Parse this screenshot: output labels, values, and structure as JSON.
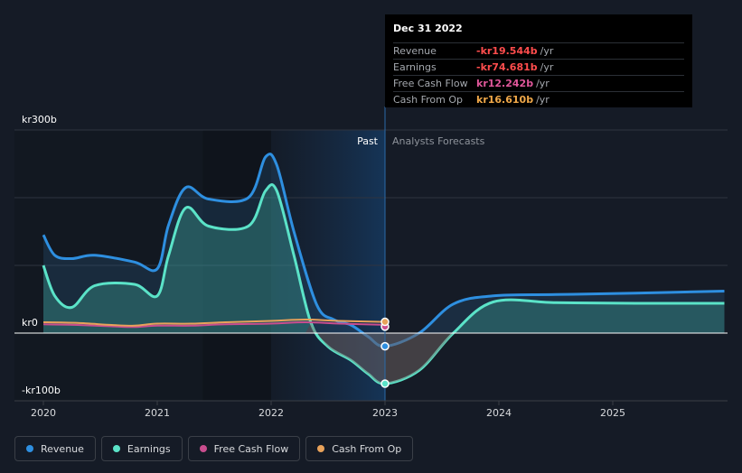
{
  "chart_data": {
    "type": "area",
    "x_ticks": [
      "2020",
      "2021",
      "2022",
      "2023",
      "2024",
      "2025"
    ],
    "y_ticks": [
      {
        "value": 300,
        "label": "kr300b"
      },
      {
        "value": 0,
        "label": "kr0"
      },
      {
        "value": -100,
        "label": "-kr100b"
      }
    ],
    "ylim": [
      -100,
      300
    ],
    "past_label": "Past",
    "forecast_label": "Analysts Forecasts",
    "series": [
      {
        "name": "Revenue",
        "color": "#2e8fe0",
        "fill": true,
        "points": [
          [
            2020.0,
            145
          ],
          [
            2020.1,
            115
          ],
          [
            2020.25,
            110
          ],
          [
            2020.45,
            115
          ],
          [
            2020.8,
            105
          ],
          [
            2021.0,
            95
          ],
          [
            2021.1,
            160
          ],
          [
            2021.25,
            215
          ],
          [
            2021.45,
            198
          ],
          [
            2021.8,
            200
          ],
          [
            2021.95,
            260
          ],
          [
            2022.05,
            248
          ],
          [
            2022.2,
            150
          ],
          [
            2022.4,
            42
          ],
          [
            2022.55,
            20
          ],
          [
            2022.7,
            12
          ],
          [
            2022.85,
            -5
          ],
          [
            2023.0,
            -19.5
          ],
          [
            2023.3,
            0
          ],
          [
            2023.6,
            43
          ],
          [
            2023.95,
            55
          ],
          [
            2024.5,
            57
          ],
          [
            2025.2,
            59
          ],
          [
            2025.98,
            62
          ]
        ]
      },
      {
        "name": "Earnings",
        "color": "#5be3c8",
        "fill": true,
        "points": [
          [
            2020.0,
            100
          ],
          [
            2020.1,
            55
          ],
          [
            2020.25,
            38
          ],
          [
            2020.45,
            70
          ],
          [
            2020.8,
            72
          ],
          [
            2021.0,
            55
          ],
          [
            2021.1,
            115
          ],
          [
            2021.25,
            185
          ],
          [
            2021.45,
            158
          ],
          [
            2021.8,
            158
          ],
          [
            2021.95,
            210
          ],
          [
            2022.05,
            210
          ],
          [
            2022.2,
            115
          ],
          [
            2022.35,
            15
          ],
          [
            2022.5,
            -20
          ],
          [
            2022.7,
            -40
          ],
          [
            2022.85,
            -60
          ],
          [
            2023.0,
            -74.7
          ],
          [
            2023.3,
            -55
          ],
          [
            2023.6,
            0
          ],
          [
            2023.95,
            46
          ],
          [
            2024.5,
            45
          ],
          [
            2025.2,
            44
          ],
          [
            2025.98,
            44
          ]
        ]
      },
      {
        "name": "Free Cash Flow",
        "color": "#c94d8e",
        "fill": false,
        "points": [
          [
            2020.0,
            13
          ],
          [
            2020.3,
            12
          ],
          [
            2020.6,
            10
          ],
          [
            2020.8,
            9
          ],
          [
            2021.0,
            11
          ],
          [
            2021.3,
            11
          ],
          [
            2021.6,
            13
          ],
          [
            2022.0,
            14
          ],
          [
            2022.3,
            16
          ],
          [
            2022.6,
            14
          ],
          [
            2023.0,
            12.2
          ]
        ]
      },
      {
        "name": "Cash From Op",
        "color": "#e8a25a",
        "fill": false,
        "points": [
          [
            2020.0,
            16
          ],
          [
            2020.3,
            15
          ],
          [
            2020.6,
            12
          ],
          [
            2020.8,
            11
          ],
          [
            2021.0,
            14
          ],
          [
            2021.3,
            14
          ],
          [
            2021.6,
            16
          ],
          [
            2022.0,
            18
          ],
          [
            2022.3,
            20
          ],
          [
            2022.6,
            18
          ],
          [
            2023.0,
            16.6
          ]
        ]
      }
    ]
  },
  "tooltip": {
    "date": "Dec 31 2022",
    "rows": [
      {
        "label": "Revenue",
        "value": "-kr19.544b",
        "unit": "/yr",
        "color": "#ff4d4d"
      },
      {
        "label": "Earnings",
        "value": "-kr74.681b",
        "unit": "/yr",
        "color": "#ff4d4d"
      },
      {
        "label": "Free Cash Flow",
        "value": "kr12.242b",
        "unit": "/yr",
        "color": "#e0579a"
      },
      {
        "label": "Cash From Op",
        "value": "kr16.610b",
        "unit": "/yr",
        "color": "#f0a849"
      }
    ]
  },
  "legend": [
    {
      "label": "Revenue",
      "color": "#2e8fe0"
    },
    {
      "label": "Earnings",
      "color": "#5be3c8"
    },
    {
      "label": "Free Cash Flow",
      "color": "#c94d8e"
    },
    {
      "label": "Cash From Op",
      "color": "#e8a25a"
    }
  ]
}
